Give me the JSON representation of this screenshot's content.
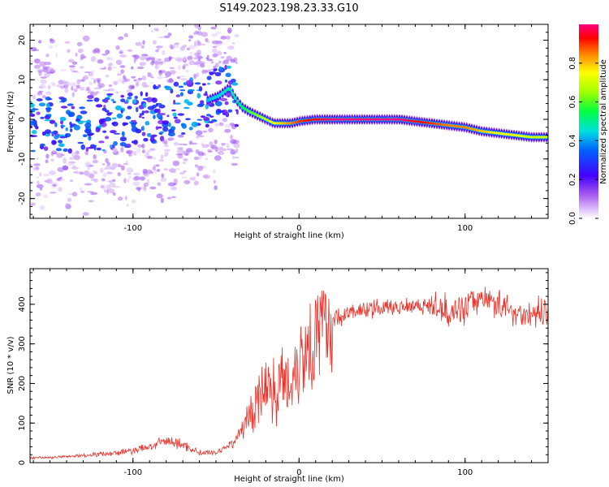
{
  "title": "S149.2023.198.23.33.G10",
  "chart_data": [
    {
      "type": "heatmap",
      "xlabel": "Height of straight line (km)",
      "ylabel": "Frequency (Hz)",
      "xlim": [
        -162,
        150
      ],
      "ylim": [
        -25,
        24
      ],
      "xticks": [
        -100,
        0,
        100
      ],
      "yticks": [
        -20,
        -10,
        0,
        10,
        20
      ],
      "colorbar": {
        "label": "Normalized spectral amplitude",
        "range": [
          0,
          1
        ],
        "ticks": [
          "0.0",
          "0.2",
          "0.4",
          "0.6",
          "0.8"
        ]
      },
      "ridge": {
        "x": [
          -162,
          -140,
          -120,
          -100,
          -80,
          -60,
          -48,
          -42,
          -38,
          -34,
          -30,
          -25,
          -20,
          -15,
          -10,
          -5,
          0,
          10,
          20,
          40,
          60,
          80,
          90,
          100,
          110,
          120,
          130,
          140,
          150
        ],
        "y": [
          -2,
          -1,
          -1,
          0,
          2,
          4,
          6,
          8,
          5,
          3,
          2,
          1,
          0,
          -1,
          -1,
          -1,
          -0.5,
          0,
          0,
          0,
          0,
          -1,
          -1.5,
          -2,
          -3,
          -3.5,
          -4,
          -4.5,
          -4.5
        ],
        "amplitude": [
          0.3,
          0.3,
          0.35,
          0.35,
          0.4,
          0.4,
          0.45,
          0.5,
          0.5,
          0.55,
          0.6,
          0.65,
          0.7,
          0.75,
          0.8,
          0.85,
          0.9,
          0.95,
          1.0,
          1.0,
          1.0,
          0.9,
          0.85,
          0.85,
          0.8,
          0.75,
          0.75,
          0.7,
          0.7
        ]
      }
    },
    {
      "type": "line",
      "xlabel": "Height of straight line (km)",
      "ylabel": "SNR (10 * v/v)",
      "xlim": [
        -162,
        150
      ],
      "ylim": [
        0,
        490
      ],
      "xticks": [
        -100,
        0,
        100
      ],
      "yticks": [
        0,
        100,
        200,
        300,
        400
      ],
      "color": "#e8332a",
      "series": [
        {
          "x": [
            -162,
            -150,
            -140,
            -130,
            -120,
            -110,
            -100,
            -90,
            -80,
            -70,
            -60,
            -50,
            -40,
            -30,
            -25,
            -20,
            -15,
            -10,
            -5,
            0,
            5,
            10,
            15,
            20,
            30,
            40,
            50,
            60,
            70,
            80,
            90,
            100,
            110,
            120,
            130,
            140,
            150
          ],
          "y": [
            12,
            13,
            15,
            18,
            22,
            25,
            30,
            40,
            55,
            45,
            25,
            25,
            50,
            110,
            170,
            190,
            190,
            200,
            210,
            260,
            300,
            320,
            340,
            360,
            380,
            385,
            390,
            395,
            400,
            395,
            385,
            390,
            420,
            400,
            380,
            370,
            390
          ]
        }
      ]
    }
  ]
}
